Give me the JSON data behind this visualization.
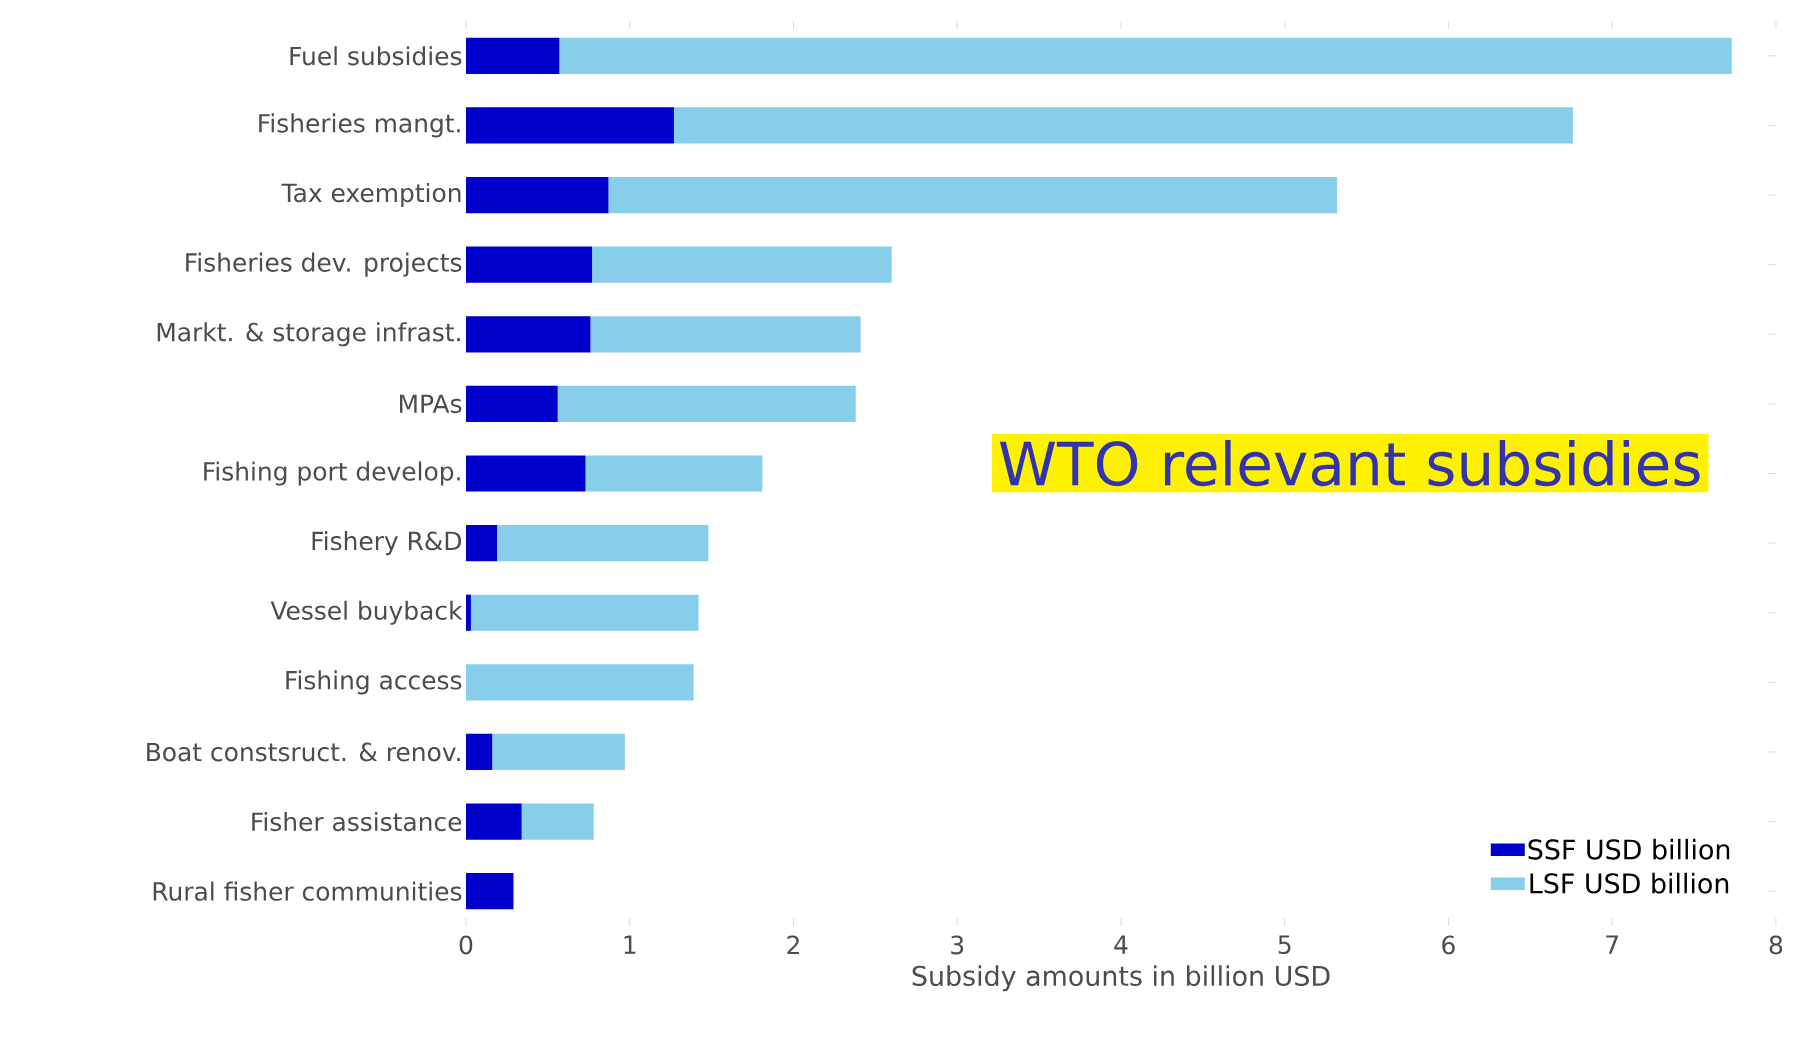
{
  "chart_data": {
    "type": "bar",
    "orientation": "horizontal",
    "stacked": true,
    "categories": [
      "Fuel subsidies",
      "Fisheries mangt.",
      "Tax exemption",
      "Fisheries dev. projects",
      "Markt. & storage infrast.",
      "MPAs",
      "Fishing port develop.",
      "Fishery R&D",
      "Vessel buyback",
      "Fishing access",
      "Boat constsruct. & renov.",
      "Fisher assistance",
      "Rural fisher communities"
    ],
    "series": [
      {
        "name": "SSF USD billion",
        "color": "#0000cd",
        "values": [
          0.57,
          1.27,
          0.87,
          0.77,
          0.76,
          0.56,
          0.73,
          0.19,
          0.03,
          0,
          0.16,
          0.34,
          0.29
        ]
      },
      {
        "name": "LSF USD billion",
        "color": "#87ceeb",
        "values": [
          7.16,
          5.49,
          4.45,
          1.83,
          1.65,
          1.82,
          1.08,
          1.29,
          1.39,
          1.39,
          0.81,
          0.44,
          0
        ]
      }
    ],
    "xlabel": "Subsidy amounts in billion USD",
    "xlim": [
      0,
      8
    ],
    "xticks": [
      0,
      1,
      2,
      3,
      4,
      5,
      6,
      7,
      8
    ],
    "legend": "bottom right",
    "annotations": [
      "WTO relevant subsidies"
    ]
  }
}
